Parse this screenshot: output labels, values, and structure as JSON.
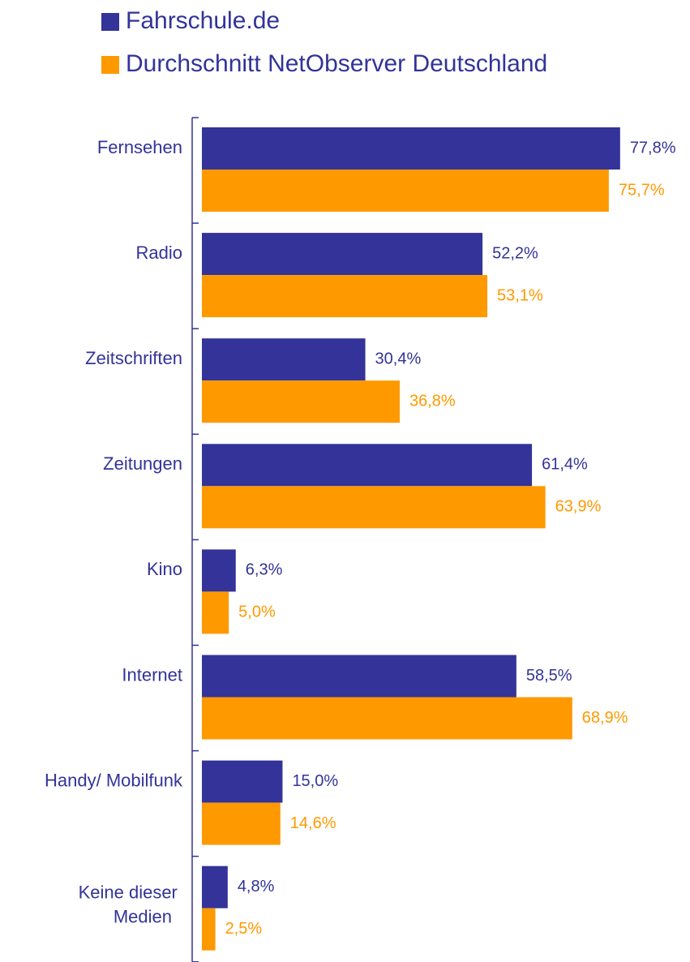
{
  "chart_data": {
    "type": "barh",
    "categories": [
      "Fernsehen",
      "Radio",
      "Zeitschriften",
      "Zeitungen",
      "Kino",
      "Internet",
      "Handy/ Mobilfunk",
      "Keine dieser Medien"
    ],
    "series": [
      {
        "name": "Fahrschule.de",
        "color": "#333399",
        "values": [
          77.8,
          52.2,
          30.4,
          61.4,
          6.3,
          58.5,
          15.0,
          4.8
        ],
        "value_labels": [
          "77,8%",
          "52,2%",
          "30,4%",
          "61,4%",
          "6,3%",
          "58,5%",
          "15,0%",
          "4,8%"
        ]
      },
      {
        "name": "Durchschnitt NetObserver Deutschland",
        "color": "#ff9900",
        "values": [
          75.7,
          53.1,
          36.8,
          63.9,
          5.0,
          68.9,
          14.6,
          2.5
        ],
        "value_labels": [
          "75,7%",
          "53,1%",
          "36,8%",
          "63,9%",
          "5,0%",
          "68,9%",
          "14,6%",
          "2,5%"
        ]
      }
    ],
    "xlim": [
      0,
      100
    ],
    "legend": "top"
  }
}
